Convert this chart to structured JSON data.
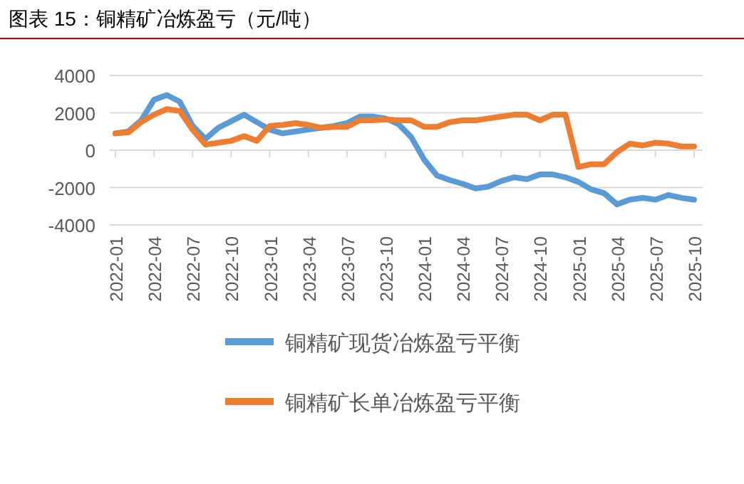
{
  "chart_data": {
    "type": "line",
    "title": "图表 15：铜精矿冶炼盈亏（元/吨）",
    "categories": [
      "2022-01",
      null,
      null,
      "2022-04",
      null,
      null,
      "2022-07",
      null,
      null,
      "2022-10",
      null,
      null,
      "2023-01",
      null,
      null,
      "2023-04",
      null,
      null,
      "2023-07",
      null,
      null,
      "2023-10",
      null,
      null,
      "2024-01",
      null,
      null,
      "2024-04",
      null,
      null,
      "2024-07",
      null,
      null,
      "2024-10",
      null,
      null,
      "2025-01",
      null,
      null,
      "2025-04",
      null,
      null,
      "2025-07",
      null,
      null,
      "2025-10"
    ],
    "series": [
      {
        "name": "铜精矿现货冶炼盈亏平衡",
        "color": "#5b9bd5",
        "values": [
          900,
          1000,
          1600,
          2700,
          2950,
          2600,
          1300,
          600,
          1200,
          1550,
          1900,
          1500,
          1100,
          900,
          1000,
          1100,
          1200,
          1300,
          1450,
          1800,
          1800,
          1700,
          1400,
          700,
          -500,
          -1350,
          -1600,
          -1800,
          -2050,
          -1950,
          -1650,
          -1450,
          -1550,
          -1300,
          -1300,
          -1450,
          -1700,
          -2100,
          -2300,
          -2900,
          -2650,
          -2550,
          -2650,
          -2400,
          -2550,
          -2650
        ]
      },
      {
        "name": "铜精矿长单冶炼盈亏平衡",
        "color": "#ed7d31",
        "values": [
          900,
          950,
          1500,
          1900,
          2200,
          2100,
          1100,
          300,
          400,
          500,
          750,
          500,
          1300,
          1350,
          1450,
          1350,
          1200,
          1250,
          1250,
          1600,
          1600,
          1650,
          1600,
          1600,
          1250,
          1250,
          1500,
          1600,
          1600,
          1700,
          1800,
          1900,
          1900,
          1600,
          1900,
          1900,
          -900,
          -750,
          -750,
          -100,
          350,
          250,
          400,
          350,
          200,
          200
        ]
      }
    ],
    "ylim": [
      -4000,
      4000
    ],
    "yticks": [
      -4000,
      -2000,
      0,
      2000,
      4000
    ],
    "grid": "y",
    "legend": "bottom",
    "marker": "none",
    "line_style": "solid"
  }
}
